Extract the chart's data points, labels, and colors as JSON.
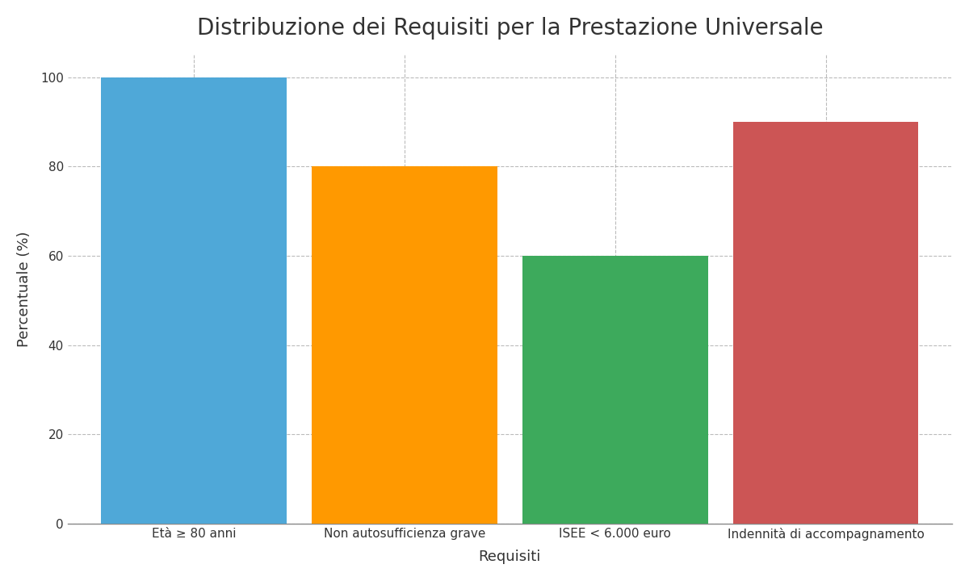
{
  "title": "Distribuzione dei Requisiti per la Prestazione Universale",
  "categories": [
    "Età ≥ 80 anni",
    "Non autosufficienza grave",
    "ISEE < 6.000 euro",
    "Indennità di accompagnamento"
  ],
  "values": [
    100,
    80,
    60,
    90
  ],
  "bar_colors": [
    "#4FA8D8",
    "#FF9900",
    "#3DAA5C",
    "#CC5555"
  ],
  "xlabel": "Requisiti",
  "ylabel": "Percentuale (%)",
  "ylim": [
    0,
    105
  ],
  "yticks": [
    0,
    20,
    40,
    60,
    80,
    100
  ],
  "background_color": "#FFFFFF",
  "grid_color": "#AAAAAA",
  "title_fontsize": 20,
  "axis_label_fontsize": 13,
  "tick_fontsize": 11,
  "bar_width": 0.88
}
